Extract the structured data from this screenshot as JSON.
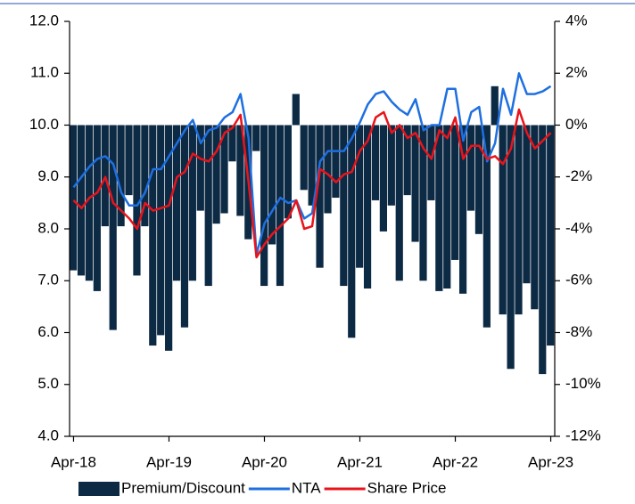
{
  "chart_data": {
    "type": "bar-line",
    "categories": [
      "Apr-18",
      null,
      null,
      null,
      null,
      null,
      null,
      null,
      null,
      null,
      null,
      null,
      "Apr-19",
      null,
      null,
      null,
      null,
      null,
      null,
      null,
      null,
      null,
      null,
      null,
      "Apr-20",
      null,
      null,
      null,
      null,
      null,
      null,
      null,
      null,
      null,
      null,
      null,
      "Apr-21",
      null,
      null,
      null,
      null,
      null,
      null,
      null,
      null,
      null,
      null,
      null,
      "Apr-22",
      null,
      null,
      null,
      null,
      null,
      null,
      null,
      null,
      null,
      null,
      null,
      "Apr-23"
    ],
    "series": [
      {
        "name": "Premium/Discount",
        "type": "bar",
        "axis": "y2",
        "color": "#0d2a45",
        "values": [
          -5.6,
          -5.8,
          -6.0,
          -6.4,
          -3.9,
          -7.9,
          -3.9,
          -2.7,
          -5.8,
          -3.9,
          -8.5,
          -8.1,
          -8.7,
          -6.0,
          -7.8,
          -6.0,
          -3.3,
          -6.2,
          -3.8,
          -3.4,
          -1.4,
          -3.5,
          -4.4,
          -1.0,
          -6.2,
          -4.6,
          -6.2,
          -3.6,
          1.2,
          -2.5,
          -3.1,
          -5.5,
          -3.4,
          -2.8,
          -6.2,
          -8.2,
          -5.5,
          -6.3,
          -2.9,
          -4.1,
          -3.1,
          -6.0,
          -2.7,
          -4.5,
          -6.0,
          -2.9,
          -6.4,
          -6.3,
          -5.2,
          -6.5,
          -3.3,
          -4.2,
          -7.8,
          1.5,
          -7.3,
          -9.4,
          -7.3,
          -6.1,
          -7.1,
          -9.6,
          -8.5
        ]
      },
      {
        "name": "NTA",
        "type": "line",
        "color": "#1e6fe0",
        "values": [
          8.8,
          9.0,
          9.2,
          9.35,
          9.4,
          9.25,
          8.7,
          8.45,
          8.45,
          8.7,
          9.15,
          9.15,
          9.4,
          9.65,
          9.9,
          10.1,
          9.65,
          9.9,
          9.95,
          10.15,
          10.25,
          10.6,
          9.75,
          7.5,
          8.1,
          8.35,
          8.6,
          8.5,
          8.55,
          8.2,
          8.3,
          9.3,
          9.5,
          9.5,
          9.5,
          9.75,
          10.05,
          10.4,
          10.6,
          10.65,
          10.45,
          10.3,
          10.2,
          10.5,
          9.9,
          10.0,
          10.0,
          10.7,
          10.7,
          9.7,
          10.25,
          10.35,
          9.3,
          9.65,
          10.7,
          10.2,
          11.0,
          10.6,
          10.6,
          10.65,
          10.75
        ]
      },
      {
        "name": "Share Price",
        "type": "line",
        "color": "#e8141b",
        "values": [
          8.55,
          8.4,
          8.6,
          8.7,
          9.0,
          8.5,
          8.35,
          8.2,
          8.0,
          8.5,
          8.35,
          8.4,
          8.45,
          9.0,
          9.1,
          9.45,
          9.35,
          9.3,
          9.5,
          9.85,
          9.95,
          10.2,
          8.9,
          7.45,
          7.7,
          7.9,
          8.05,
          8.2,
          8.55,
          8.0,
          8.05,
          9.15,
          9.05,
          8.9,
          9.05,
          9.1,
          9.5,
          9.7,
          10.15,
          10.25,
          9.85,
          10.0,
          9.75,
          9.85,
          9.55,
          9.35,
          9.9,
          9.75,
          10.15,
          9.35,
          9.6,
          9.6,
          9.35,
          9.4,
          9.25,
          9.55,
          10.3,
          9.85,
          9.55,
          9.7,
          9.85
        ]
      }
    ],
    "ylim": [
      4,
      12
    ],
    "yticks": [
      {
        "value": 4,
        "label": "4.0"
      },
      {
        "value": 5,
        "label": "5.0"
      },
      {
        "value": 6,
        "label": "6.0"
      },
      {
        "value": 7,
        "label": "7.0"
      },
      {
        "value": 8,
        "label": "8.0"
      },
      {
        "value": 9,
        "label": "9.0"
      },
      {
        "value": 10,
        "label": "10.0"
      },
      {
        "value": 11,
        "label": "11.0"
      },
      {
        "value": 12,
        "label": "12.0"
      }
    ],
    "y2lim": [
      -12,
      4
    ],
    "y2ticks": [
      {
        "value": -12,
        "label": "-12%"
      },
      {
        "value": -10,
        "label": "-10%"
      },
      {
        "value": -8,
        "label": "-8%"
      },
      {
        "value": -6,
        "label": "-6%"
      },
      {
        "value": -4,
        "label": "-4%"
      },
      {
        "value": -2,
        "label": "-2%"
      },
      {
        "value": 0,
        "label": "0%"
      },
      {
        "value": 2,
        "label": "2%"
      },
      {
        "value": 4,
        "label": "4%"
      }
    ],
    "legend": "bottom"
  }
}
